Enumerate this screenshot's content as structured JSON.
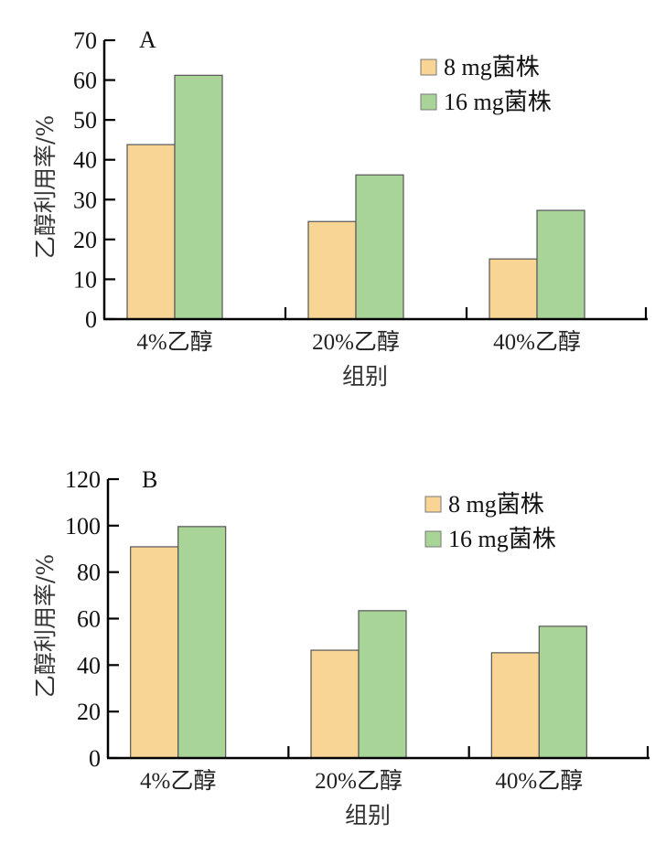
{
  "chart_data": [
    {
      "type": "bar",
      "panel": "A",
      "title": "",
      "xlabel": "组别",
      "ylabel": "乙醇利用率/%",
      "ylim": [
        0,
        70
      ],
      "yticks": [
        0,
        10,
        20,
        30,
        40,
        50,
        60,
        70
      ],
      "grid": false,
      "legend_position": "top-right",
      "categories": [
        "4%乙醇",
        "20%乙醇",
        "40%乙醇"
      ],
      "series": [
        {
          "name": "8 mg菌株",
          "color": "#F9D595",
          "values": [
            43.8,
            24.5,
            15.1
          ]
        },
        {
          "name": "16 mg菌株",
          "color": "#A8D497",
          "values": [
            61.2,
            36.2,
            27.3
          ]
        }
      ]
    },
    {
      "type": "bar",
      "panel": "B",
      "title": "",
      "xlabel": "组别",
      "ylabel": "乙醇利用率/%",
      "ylim": [
        0,
        120
      ],
      "yticks": [
        0,
        20,
        40,
        60,
        80,
        100,
        120
      ],
      "grid": false,
      "legend_position": "top-right",
      "categories": [
        "4%乙醇",
        "20%乙醇",
        "40%乙醇"
      ],
      "series": [
        {
          "name": "8 mg菌株",
          "color": "#F9D595",
          "values": [
            90.9,
            46.4,
            45.3
          ]
        },
        {
          "name": "16 mg菌株",
          "color": "#A8D497",
          "values": [
            99.6,
            63.4,
            56.7
          ]
        }
      ]
    }
  ]
}
